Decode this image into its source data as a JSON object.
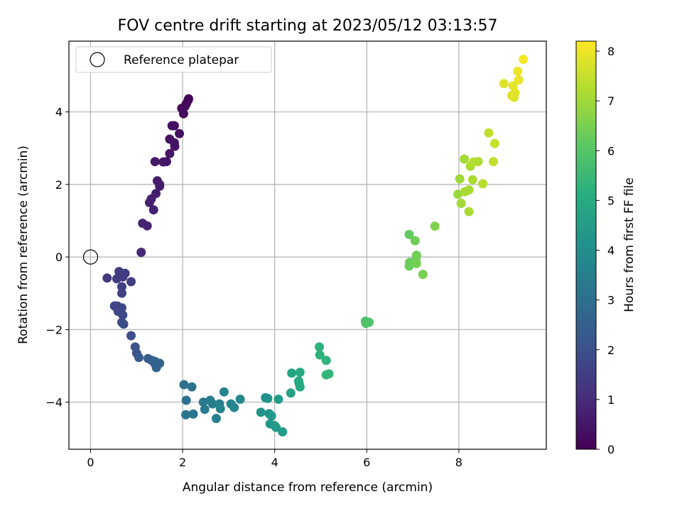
{
  "chart_data": {
    "type": "scatter",
    "title": "FOV centre drift starting at 2023/05/12 03:13:57",
    "xlabel": "Angular distance from reference (arcmin)",
    "ylabel": "Rotation from reference (arcmin)",
    "xlim": [
      -0.47,
      9.9
    ],
    "ylim": [
      -5.3,
      5.95
    ],
    "xticks": [
      0,
      2,
      4,
      6,
      8
    ],
    "yticks": [
      -4,
      -2,
      0,
      2,
      4
    ],
    "grid": true,
    "legend": {
      "placement": "top-left",
      "entries": [
        "Reference platepar"
      ]
    },
    "reference_point": {
      "name": "Reference platepar",
      "x": 0,
      "y": 0
    },
    "colorbar": {
      "label": "Hours from first FF file",
      "range": [
        0,
        8.2
      ],
      "ticks": [
        0,
        1,
        2,
        3,
        4,
        5,
        6,
        7,
        8
      ],
      "colormap": "viridis"
    },
    "points": [
      [
        1.1,
        0.13,
        0.9
      ],
      [
        1.23,
        0.86,
        0.85
      ],
      [
        1.13,
        0.93,
        0.8
      ],
      [
        1.37,
        1.3,
        0.75
      ],
      [
        1.28,
        1.5,
        0.72
      ],
      [
        1.32,
        1.6,
        0.7
      ],
      [
        1.42,
        1.75,
        0.68
      ],
      [
        1.5,
        2.0,
        0.66
      ],
      [
        1.45,
        2.1,
        0.64
      ],
      [
        1.5,
        1.95,
        0.62
      ],
      [
        1.4,
        2.63,
        0.55
      ],
      [
        1.58,
        2.62,
        0.52
      ],
      [
        1.65,
        2.63,
        0.5
      ],
      [
        1.72,
        2.85,
        0.47
      ],
      [
        1.83,
        3.05,
        0.45
      ],
      [
        1.82,
        3.15,
        0.42
      ],
      [
        1.72,
        3.25,
        0.4
      ],
      [
        1.93,
        3.4,
        0.37
      ],
      [
        1.82,
        3.62,
        0.35
      ],
      [
        1.77,
        3.62,
        0.33
      ],
      [
        2.02,
        3.95,
        0.25
      ],
      [
        1.98,
        4.1,
        0.22
      ],
      [
        2.05,
        4.15,
        0.2
      ],
      [
        2.08,
        4.22,
        0.17
      ],
      [
        2.12,
        4.32,
        0.13
      ],
      [
        2.13,
        4.36,
        0.1
      ],
      [
        0.36,
        -0.58,
        1.3
      ],
      [
        0.62,
        -0.4,
        1.35
      ],
      [
        0.57,
        -0.6,
        1.4
      ],
      [
        0.75,
        -0.45,
        1.45
      ],
      [
        0.7,
        -0.55,
        1.48
      ],
      [
        0.68,
        -0.82,
        1.52
      ],
      [
        0.88,
        -0.68,
        1.5
      ],
      [
        0.68,
        -1.0,
        1.55
      ],
      [
        0.58,
        -1.35,
        1.65
      ],
      [
        0.52,
        -1.35,
        1.7
      ],
      [
        0.6,
        -1.5,
        1.75
      ],
      [
        0.68,
        -1.4,
        1.78
      ],
      [
        0.7,
        -1.6,
        1.82
      ],
      [
        0.72,
        -1.85,
        1.88
      ],
      [
        0.68,
        -1.8,
        1.92
      ],
      [
        0.88,
        -2.17,
        2.0
      ],
      [
        0.97,
        -2.48,
        2.1
      ],
      [
        1.0,
        -2.65,
        2.2
      ],
      [
        1.05,
        -2.77,
        2.3
      ],
      [
        1.25,
        -2.8,
        2.35
      ],
      [
        1.33,
        -2.85,
        2.4
      ],
      [
        1.4,
        -2.95,
        2.45
      ],
      [
        1.43,
        -3.05,
        2.5
      ],
      [
        1.5,
        -2.93,
        2.55
      ],
      [
        1.4,
        -2.88,
        2.6
      ],
      [
        2.03,
        -3.52,
        3.0
      ],
      [
        2.08,
        -3.95,
        3.05
      ],
      [
        2.2,
        -3.58,
        3.1
      ],
      [
        2.07,
        -4.35,
        3.15
      ],
      [
        2.23,
        -4.33,
        3.2
      ],
      [
        2.45,
        -4.0,
        3.3
      ],
      [
        2.48,
        -4.2,
        3.35
      ],
      [
        2.6,
        -3.95,
        3.4
      ],
      [
        2.65,
        -4.05,
        3.45
      ],
      [
        2.73,
        -4.45,
        3.5
      ],
      [
        2.8,
        -4.05,
        3.55
      ],
      [
        2.82,
        -4.18,
        3.6
      ],
      [
        2.9,
        -3.72,
        3.65
      ],
      [
        3.05,
        -4.05,
        3.7
      ],
      [
        3.12,
        -4.15,
        3.75
      ],
      [
        3.25,
        -3.92,
        3.8
      ],
      [
        3.8,
        -3.88,
        4.1
      ],
      [
        3.85,
        -3.9,
        4.15
      ],
      [
        3.7,
        -4.28,
        4.2
      ],
      [
        3.88,
        -4.32,
        4.25
      ],
      [
        3.9,
        -4.6,
        4.3
      ],
      [
        3.93,
        -4.38,
        4.35
      ],
      [
        4.0,
        -4.65,
        4.4
      ],
      [
        4.03,
        -4.7,
        4.45
      ],
      [
        4.08,
        -3.92,
        4.5
      ],
      [
        4.17,
        -4.82,
        4.55
      ],
      [
        4.35,
        -3.75,
        4.7
      ],
      [
        4.37,
        -3.2,
        4.8
      ],
      [
        4.53,
        -3.48,
        4.85
      ],
      [
        4.55,
        -3.58,
        4.9
      ],
      [
        4.55,
        -3.18,
        4.95
      ],
      [
        4.52,
        -3.42,
        5.0
      ],
      [
        4.97,
        -2.48,
        5.2
      ],
      [
        4.98,
        -2.7,
        5.25
      ],
      [
        5.12,
        -2.85,
        5.3
      ],
      [
        5.12,
        -3.25,
        5.35
      ],
      [
        5.18,
        -3.22,
        5.4
      ],
      [
        5.97,
        -1.77,
        5.8
      ],
      [
        6.05,
        -1.8,
        5.85
      ],
      [
        5.98,
        -1.83,
        5.9
      ],
      [
        6.92,
        0.62,
        6.2
      ],
      [
        6.93,
        -0.15,
        6.25
      ],
      [
        6.92,
        -0.25,
        6.3
      ],
      [
        7.05,
        0.45,
        6.35
      ],
      [
        7.07,
        -0.05,
        6.38
      ],
      [
        7.08,
        0.05,
        6.4
      ],
      [
        7.08,
        -0.18,
        6.45
      ],
      [
        7.22,
        -0.48,
        6.5
      ],
      [
        7.48,
        0.85,
        6.6
      ],
      [
        7.98,
        1.73,
        6.9
      ],
      [
        8.02,
        2.15,
        6.95
      ],
      [
        8.05,
        1.48,
        7.0
      ],
      [
        8.12,
        2.7,
        7.05
      ],
      [
        8.13,
        1.8,
        7.08
      ],
      [
        8.22,
        1.85,
        7.1
      ],
      [
        8.22,
        1.25,
        7.12
      ],
      [
        8.25,
        2.5,
        7.15
      ],
      [
        8.3,
        2.13,
        7.18
      ],
      [
        8.42,
        2.63,
        7.2
      ],
      [
        8.32,
        2.62,
        7.25
      ],
      [
        8.52,
        2.02,
        7.3
      ],
      [
        8.65,
        3.42,
        7.4
      ],
      [
        8.75,
        2.63,
        7.45
      ],
      [
        8.78,
        3.13,
        7.5
      ],
      [
        8.98,
        4.78,
        7.8
      ],
      [
        9.15,
        4.45,
        7.85
      ],
      [
        9.18,
        4.72,
        7.88
      ],
      [
        9.22,
        4.53,
        7.9
      ],
      [
        9.3,
        4.88,
        7.95
      ],
      [
        9.28,
        5.12,
        8.0
      ],
      [
        9.4,
        5.45,
        8.1
      ],
      [
        9.2,
        4.4,
        7.82
      ]
    ]
  }
}
